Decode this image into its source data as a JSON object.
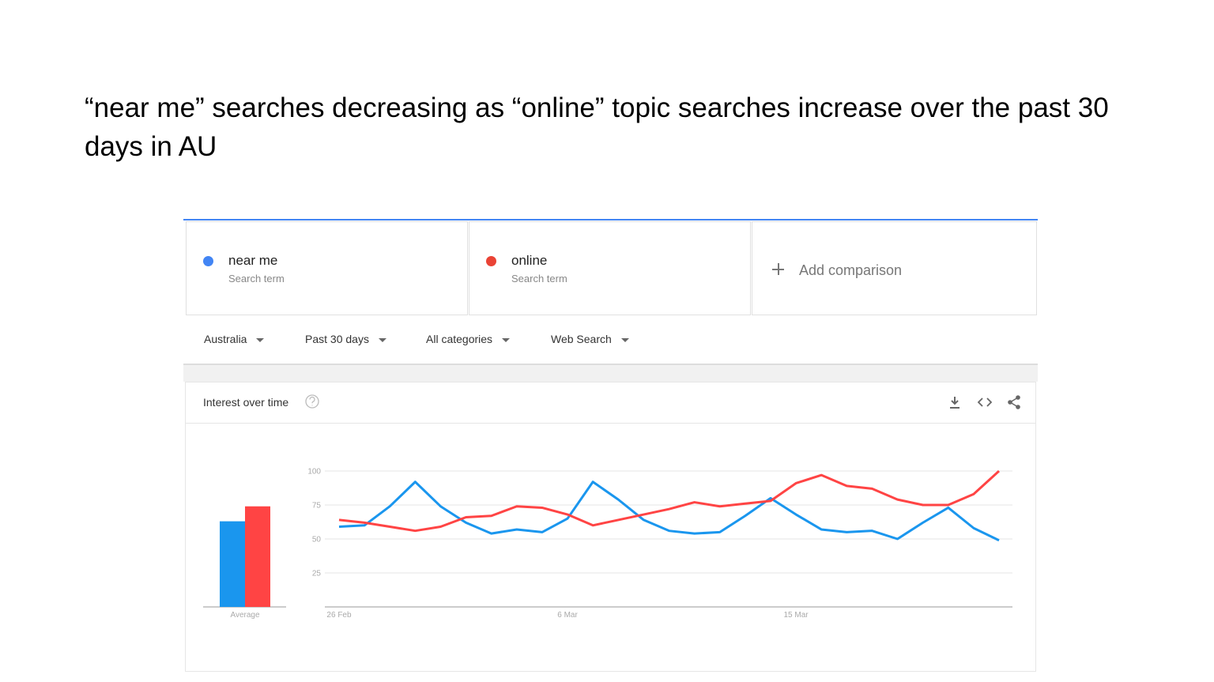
{
  "slide_title": "“near me” searches decreasing as “online” topic searches increase over the past 30 days in AU",
  "add_comparison": "Add comparison",
  "filters": [
    "Australia",
    "Past 30 days",
    "All categories",
    "Web Search"
  ],
  "panel_title": "Interest over time",
  "chart_data": {
    "type": "line",
    "categories": [
      "26 Feb",
      null,
      null,
      null,
      null,
      null,
      null,
      null,
      null,
      "6 Mar",
      null,
      null,
      null,
      null,
      null,
      null,
      null,
      null,
      "15 Mar",
      null,
      null,
      null,
      null,
      null,
      null,
      null,
      null
    ],
    "series": [
      {
        "name": "near me",
        "term_type": "Search term",
        "dot_color": "#4285f4",
        "color": "#1a96ee",
        "values": [
          59,
          60,
          74,
          92,
          74,
          62,
          54,
          57,
          55,
          65,
          92,
          79,
          64,
          56,
          54,
          55,
          67,
          80,
          68,
          57,
          55,
          56,
          50,
          62,
          73,
          58,
          49
        ],
        "average": 63
      },
      {
        "name": "online",
        "term_type": "Search term",
        "dot_color": "#ea4335",
        "color": "#ff4444",
        "values": [
          64,
          62,
          59,
          56,
          59,
          66,
          67,
          74,
          73,
          68,
          60,
          64,
          68,
          72,
          77,
          74,
          76,
          78,
          91,
          97,
          89,
          87,
          79,
          75,
          75,
          83,
          100
        ],
        "average": 74
      }
    ],
    "average_label": "Average",
    "ylim": [
      0,
      100
    ],
    "yticks": [
      25,
      50,
      75,
      100
    ],
    "grid": true
  }
}
